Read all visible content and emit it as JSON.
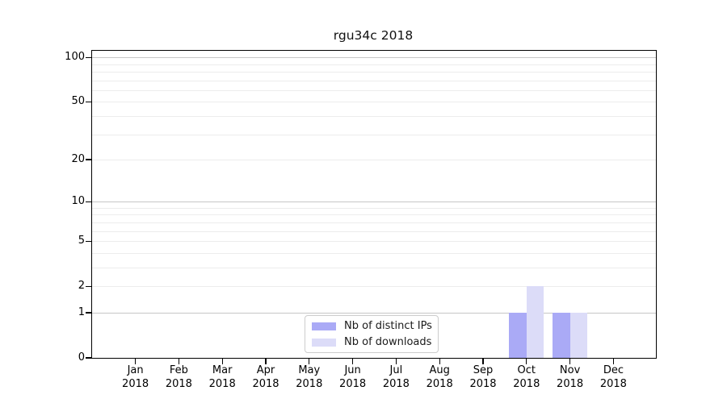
{
  "chart_data": {
    "type": "bar",
    "title": "rgu34c 2018",
    "categories": [
      "Jan",
      "Feb",
      "Mar",
      "Apr",
      "May",
      "Jun",
      "Jul",
      "Aug",
      "Sep",
      "Oct",
      "Nov",
      "Dec"
    ],
    "x_year": "2018",
    "series": [
      {
        "name": "Nb of distinct IPs",
        "color": "#aaaaf6",
        "values": [
          0,
          0,
          0,
          0,
          0,
          0,
          0,
          0,
          0,
          1,
          1,
          0
        ]
      },
      {
        "name": "Nb of downloads",
        "color": "#dcdcf8",
        "values": [
          0,
          0,
          0,
          0,
          0,
          0,
          0,
          0,
          0,
          2,
          1,
          0
        ]
      }
    ],
    "y_scale": "log1p",
    "ylim": [
      0,
      110.6
    ],
    "y_ticks": [
      0,
      1,
      2,
      5,
      10,
      20,
      50,
      100
    ],
    "grid_major": [
      1,
      10,
      100
    ],
    "grid_minor": [
      2,
      3,
      4,
      5,
      6,
      7,
      8,
      9,
      20,
      30,
      40,
      50,
      60,
      70,
      80,
      90
    ],
    "grid_major_color": "#c6c6c6",
    "grid_minor_color": "#ececec",
    "legend_position": "lower center, inside plot",
    "grid": "horizontal only",
    "background_color": "#ffffff"
  }
}
